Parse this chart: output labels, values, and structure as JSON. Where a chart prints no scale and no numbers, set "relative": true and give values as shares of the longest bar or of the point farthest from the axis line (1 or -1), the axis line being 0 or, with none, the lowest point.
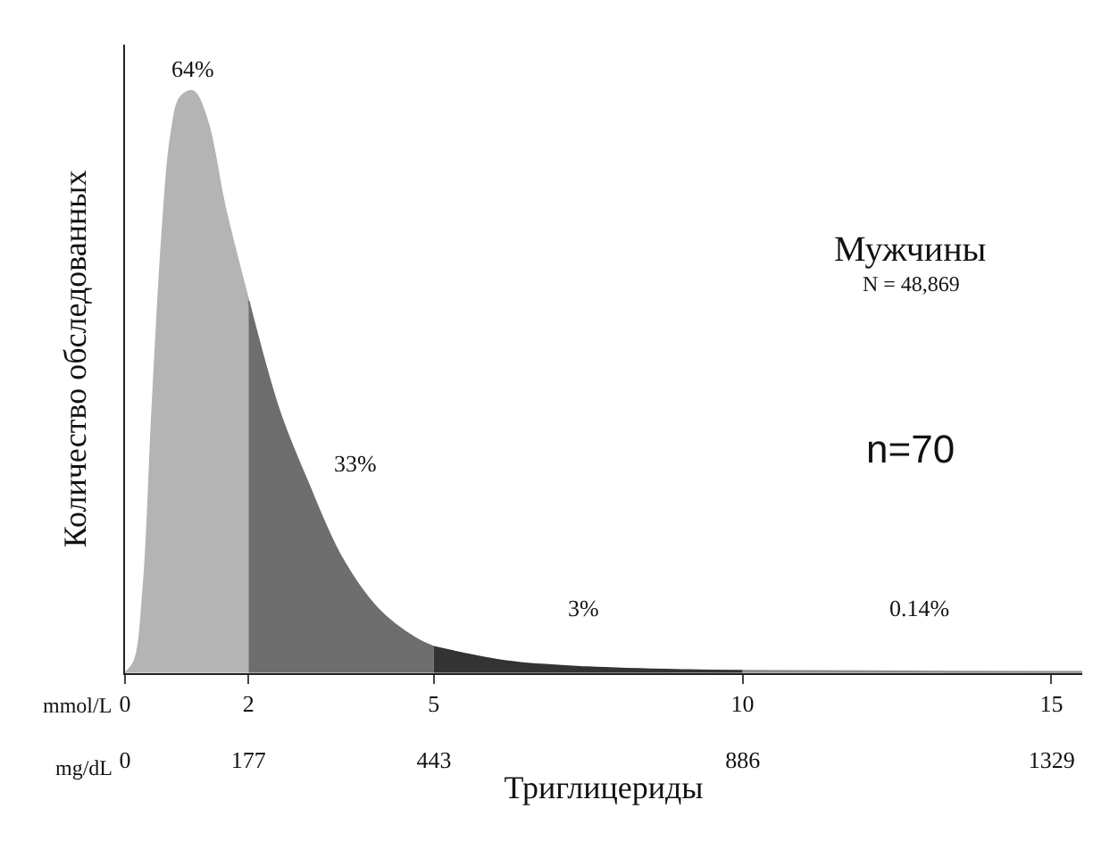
{
  "chart_data": {
    "type": "area",
    "relative": true,
    "ylabel": "Количество обследованных",
    "xlabel": "Триглицериды",
    "xlim": [
      0,
      15.5
    ],
    "xticks": [
      0,
      2,
      5,
      10,
      15
    ],
    "x2lim": [
      0,
      1373
    ],
    "x2ticks": [
      0,
      177,
      443,
      886,
      1329
    ],
    "series": [
      {
        "color": "#b4b4b4",
        "x": [
          0,
          0.15,
          0.3,
          0.44,
          0.6,
          0.74,
          0.9,
          1.1,
          1.33,
          1.62,
          2
        ],
        "values": [
          0,
          0.02,
          0.15,
          0.45,
          0.75,
          0.92,
          0.99,
          1,
          0.95,
          0.8,
          0.64
        ]
      },
      {
        "color": "#6e6e6e",
        "x": [
          2,
          2.5,
          2.95,
          3.5,
          4.1,
          4.7,
          5
        ],
        "values": [
          0.64,
          0.45,
          0.33,
          0.2,
          0.11,
          0.06,
          0.045
        ]
      },
      {
        "color": "#333333",
        "x": [
          5,
          6.2,
          7.5,
          9.1,
          10
        ],
        "values": [
          0.045,
          0.02,
          0.01,
          0.005,
          0.004
        ]
      },
      {
        "color": "#8c8c8c",
        "x": [
          10,
          12,
          15,
          15.5
        ],
        "values": [
          0.004,
          0.003,
          0.002,
          0.002
        ]
      }
    ],
    "annotations": [
      "64%",
      "33%",
      "3%",
      "0.14%",
      "Мужчины",
      "N = 48,869",
      "n=70",
      "mmol/L",
      "mg/dL"
    ]
  }
}
